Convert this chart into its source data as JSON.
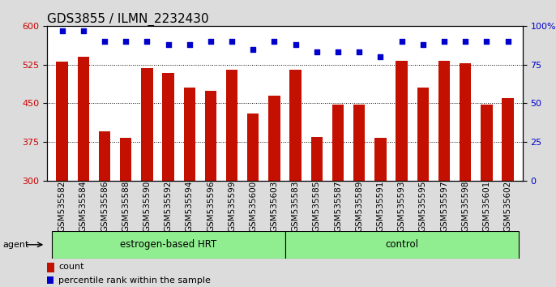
{
  "title": "GDS3855 / ILMN_2232430",
  "categories": [
    "GSM535582",
    "GSM535584",
    "GSM535586",
    "GSM535588",
    "GSM535590",
    "GSM535592",
    "GSM535594",
    "GSM535596",
    "GSM535599",
    "GSM535600",
    "GSM535603",
    "GSM535583",
    "GSM535585",
    "GSM535587",
    "GSM535589",
    "GSM535591",
    "GSM535593",
    "GSM535595",
    "GSM535597",
    "GSM535598",
    "GSM535601",
    "GSM535602"
  ],
  "bar_values": [
    530,
    540,
    395,
    383,
    518,
    508,
    480,
    475,
    515,
    430,
    465,
    515,
    385,
    448,
    448,
    383,
    533,
    480,
    533,
    527,
    448,
    460
  ],
  "percentile_values": [
    97,
    97,
    90,
    90,
    90,
    88,
    88,
    90,
    90,
    85,
    90,
    88,
    83,
    83,
    83,
    80,
    90,
    88,
    90,
    90,
    90,
    90
  ],
  "group1_label": "estrogen-based HRT",
  "group1_count": 11,
  "group2_label": "control",
  "group2_count": 11,
  "agent_label": "agent",
  "ylim_left": [
    300,
    600
  ],
  "yticks_left": [
    300,
    375,
    450,
    525,
    600
  ],
  "ylim_right": [
    0,
    100
  ],
  "yticks_right": [
    0,
    25,
    50,
    75,
    100
  ],
  "bar_color": "#C41000",
  "dot_color": "#0000CC",
  "group_bg": "#90EE90",
  "legend_count_label": "count",
  "legend_pct_label": "percentile rank within the sample",
  "background_color": "#DCDCDC",
  "plot_bg": "#ffffff",
  "title_fontsize": 11,
  "tick_label_fontsize": 7.5,
  "axis_label_color_left": "#CC0000",
  "axis_label_color_right": "#0000CC"
}
